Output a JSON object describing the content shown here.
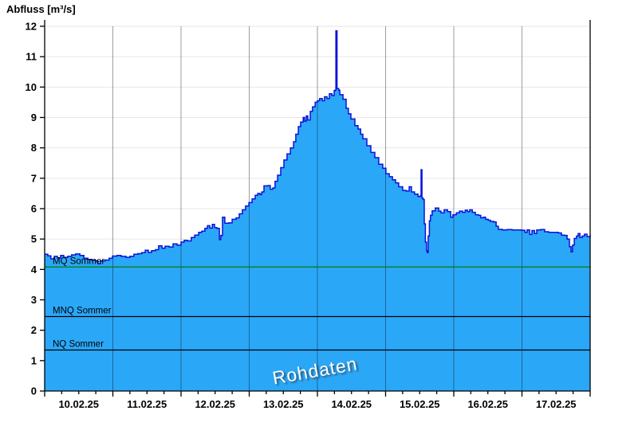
{
  "title": "Abfluss [m³/s]",
  "watermark": "Rohdaten",
  "colors": {
    "fill": "#2BA7F7",
    "line": "#0A12D8",
    "grid_h": "#E6E6E6",
    "grid_v": "rgba(0,0,0,0.38)",
    "axis": "#000000",
    "mq_green": "#007F00",
    "ref_black": "#000000",
    "tick_text": "#000000"
  },
  "chart_data": {
    "type": "area",
    "title": "Abfluss [m³/s]",
    "ylabel": "Abfluss [m³/s]",
    "xlabel": "",
    "ylim": [
      0,
      12
    ],
    "yticks": [
      0,
      1,
      2,
      3,
      4,
      5,
      6,
      7,
      8,
      9,
      10,
      11,
      12
    ],
    "x_unit": "hours since 10.02.25 00:00",
    "xlim": [
      0,
      192
    ],
    "x_day_boundaries_h": [
      0,
      24,
      48,
      72,
      96,
      120,
      144,
      168,
      192
    ],
    "x_minor_step_h": 6,
    "x_tick_labels": [
      "10.02.25",
      "11.02.25",
      "12.02.25",
      "13.02.25",
      "14.02.25",
      "15.02.25",
      "16.02.25",
      "17.02.25"
    ],
    "x_label_center_h": [
      12,
      36,
      60,
      84,
      108,
      132,
      156,
      180
    ],
    "grid": "on",
    "legend_position": "none",
    "watermark": "Rohdaten",
    "reference_lines": [
      {
        "label": "MQ Sommer",
        "value": 4.08,
        "color": "#007F00"
      },
      {
        "label": "MNQ Sommer",
        "value": 2.45,
        "color": "#000000"
      },
      {
        "label": "NQ Sommer",
        "value": 1.35,
        "color": "#000000"
      }
    ],
    "series": [
      {
        "name": "Abfluss Rohdaten",
        "style": "step-area",
        "points": [
          [
            0,
            4.5
          ],
          [
            1.1,
            4.45
          ],
          [
            2.2,
            4.35
          ],
          [
            3.4,
            4.43
          ],
          [
            4.5,
            4.38
          ],
          [
            5.6,
            4.46
          ],
          [
            6.7,
            4.4
          ],
          [
            8.1,
            4.43
          ],
          [
            9.5,
            4.48
          ],
          [
            10.9,
            4.51
          ],
          [
            12.4,
            4.46
          ],
          [
            13.8,
            4.37
          ],
          [
            15.2,
            4.33
          ],
          [
            16.6,
            4.3
          ],
          [
            18,
            4.28
          ],
          [
            18.8,
            4.19
          ],
          [
            19.6,
            4.28
          ],
          [
            21.3,
            4.31
          ],
          [
            22.7,
            4.37
          ],
          [
            23.9,
            4.44
          ],
          [
            25.5,
            4.46
          ],
          [
            26.9,
            4.43
          ],
          [
            28.6,
            4.4
          ],
          [
            30,
            4.43
          ],
          [
            31.4,
            4.5
          ],
          [
            32.8,
            4.52
          ],
          [
            34.2,
            4.55
          ],
          [
            35.4,
            4.63
          ],
          [
            36.5,
            4.56
          ],
          [
            37.6,
            4.62
          ],
          [
            39,
            4.65
          ],
          [
            40.1,
            4.78
          ],
          [
            41.3,
            4.7
          ],
          [
            42.4,
            4.76
          ],
          [
            43.8,
            4.74
          ],
          [
            45.2,
            4.84
          ],
          [
            46.6,
            4.8
          ],
          [
            48,
            4.9
          ],
          [
            49.1,
            4.96
          ],
          [
            50.2,
            4.94
          ],
          [
            51.6,
            5.05
          ],
          [
            52.8,
            5.13
          ],
          [
            54.2,
            5.22
          ],
          [
            55.3,
            5.26
          ],
          [
            56.4,
            5.35
          ],
          [
            57.3,
            5.44
          ],
          [
            58.1,
            5.36
          ],
          [
            59,
            5.48
          ],
          [
            59.8,
            5.38
          ],
          [
            60.6,
            5.35
          ],
          [
            61.5,
            4.98
          ],
          [
            62,
            5.12
          ],
          [
            62.6,
            5.72
          ],
          [
            63.4,
            5.52
          ],
          [
            64.8,
            5.53
          ],
          [
            66,
            5.65
          ],
          [
            67.4,
            5.7
          ],
          [
            68.5,
            5.83
          ],
          [
            69.6,
            5.96
          ],
          [
            70.7,
            6.09
          ],
          [
            71.9,
            6.2
          ],
          [
            73,
            6.32
          ],
          [
            74.1,
            6.44
          ],
          [
            75,
            6.5
          ],
          [
            75.8,
            6.46
          ],
          [
            76.4,
            6.55
          ],
          [
            77.2,
            6.75
          ],
          [
            78.6,
            6.76
          ],
          [
            79.4,
            6.64
          ],
          [
            80.3,
            6.68
          ],
          [
            81.1,
            6.9
          ],
          [
            82,
            7.1
          ],
          [
            83.1,
            7.35
          ],
          [
            84.2,
            7.6
          ],
          [
            85.3,
            7.8
          ],
          [
            86.5,
            8
          ],
          [
            87.6,
            8.2
          ],
          [
            88.4,
            8.45
          ],
          [
            89.3,
            8.7
          ],
          [
            90.1,
            8.85
          ],
          [
            91,
            9
          ],
          [
            91.5,
            8.88
          ],
          [
            92.1,
            9.05
          ],
          [
            92.6,
            8.92
          ],
          [
            93.5,
            9.2
          ],
          [
            94.3,
            9.35
          ],
          [
            95.2,
            9.5
          ],
          [
            96,
            9.55
          ],
          [
            96.8,
            9.62
          ],
          [
            97.7,
            9.55
          ],
          [
            98.5,
            9.68
          ],
          [
            99.4,
            9.62
          ],
          [
            100.2,
            9.78
          ],
          [
            101.1,
            9.72
          ],
          [
            101.9,
            9.88
          ],
          [
            102.2,
            9.9
          ],
          [
            102.5,
            11.85
          ],
          [
            102.9,
            9.95
          ],
          [
            103.5,
            9.9
          ],
          [
            103.9,
            9.75
          ],
          [
            105,
            9.6
          ],
          [
            106.1,
            9.3
          ],
          [
            106.9,
            9.12
          ],
          [
            107.8,
            8.95
          ],
          [
            109.2,
            8.73
          ],
          [
            110.3,
            8.62
          ],
          [
            111.2,
            8.45
          ],
          [
            112,
            8.3
          ],
          [
            113.4,
            8.07
          ],
          [
            114.8,
            7.85
          ],
          [
            116.2,
            7.68
          ],
          [
            117.6,
            7.46
          ],
          [
            119,
            7.33
          ],
          [
            120.1,
            7.15
          ],
          [
            121.3,
            7.05
          ],
          [
            122.4,
            6.95
          ],
          [
            123.5,
            6.85
          ],
          [
            124.6,
            6.72
          ],
          [
            126,
            6.6
          ],
          [
            127.2,
            6.58
          ],
          [
            128.3,
            6.72
          ],
          [
            129.1,
            6.55
          ],
          [
            130.2,
            6.48
          ],
          [
            131.4,
            6.4
          ],
          [
            132.2,
            6.42
          ],
          [
            132.5,
            7.28
          ],
          [
            132.8,
            6.35
          ],
          [
            133.2,
            6.3
          ],
          [
            133.6,
            5.5
          ],
          [
            134,
            4.9
          ],
          [
            134.4,
            4.62
          ],
          [
            134.7,
            4.55
          ],
          [
            135,
            5.1
          ],
          [
            135.4,
            5.6
          ],
          [
            135.8,
            5.78
          ],
          [
            136.4,
            5.93
          ],
          [
            137.5,
            6.02
          ],
          [
            138.7,
            5.92
          ],
          [
            139.5,
            5.86
          ],
          [
            140.6,
            5.96
          ],
          [
            141.8,
            5.9
          ],
          [
            142.9,
            5.72
          ],
          [
            143.7,
            5.8
          ],
          [
            144.9,
            5.86
          ],
          [
            146,
            5.92
          ],
          [
            147.1,
            5.88
          ],
          [
            148,
            5.95
          ],
          [
            148.8,
            5.9
          ],
          [
            149.6,
            5.96
          ],
          [
            150.5,
            5.88
          ],
          [
            151.6,
            5.8
          ],
          [
            152.7,
            5.78
          ],
          [
            153.5,
            5.7
          ],
          [
            154.4,
            5.72
          ],
          [
            155.2,
            5.65
          ],
          [
            156.1,
            5.62
          ],
          [
            156.9,
            5.58
          ],
          [
            158,
            5.56
          ],
          [
            158.9,
            5.42
          ],
          [
            159.7,
            5.32
          ],
          [
            161.1,
            5.3
          ],
          [
            162.8,
            5.31
          ],
          [
            164.5,
            5.3
          ],
          [
            166.2,
            5.3
          ],
          [
            167.9,
            5.29
          ],
          [
            169,
            5.22
          ],
          [
            169.8,
            5.3
          ],
          [
            170.7,
            5.15
          ],
          [
            171.5,
            5.28
          ],
          [
            172.4,
            5.18
          ],
          [
            173.2,
            5.3
          ],
          [
            174.6,
            5.31
          ],
          [
            176,
            5.24
          ],
          [
            177.4,
            5.22
          ],
          [
            179.1,
            5.22
          ],
          [
            180.8,
            5.2
          ],
          [
            181.9,
            5.13
          ],
          [
            183,
            5.12
          ],
          [
            183.9,
            5
          ],
          [
            184.7,
            4.75
          ],
          [
            185.3,
            4.58
          ],
          [
            185.8,
            4.8
          ],
          [
            186.4,
            5.02
          ],
          [
            187.2,
            5.1
          ],
          [
            187.8,
            5.18
          ],
          [
            188.4,
            5.05
          ],
          [
            189.2,
            5.1
          ],
          [
            190,
            5.16
          ],
          [
            190.9,
            5.08
          ],
          [
            192,
            5.13
          ]
        ]
      }
    ]
  }
}
